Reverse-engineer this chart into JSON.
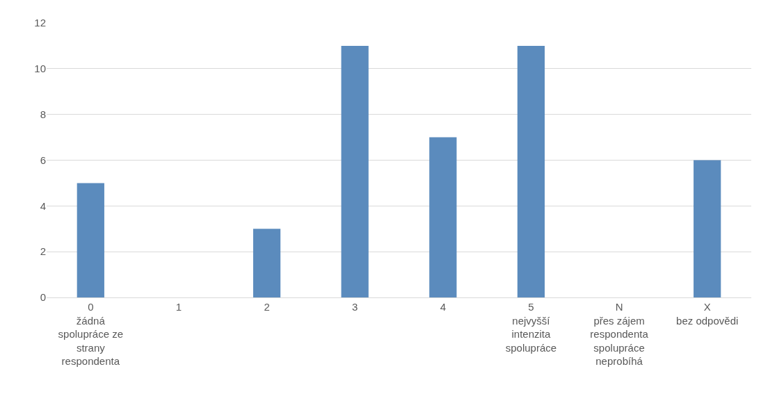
{
  "chart_data": {
    "type": "bar",
    "categories": [
      "0\nžádná\nspolupráce ze\nstrany\nrespondenta",
      "1",
      "2",
      "3",
      "4",
      "5\nnejvyšší\nintenzita\nspolupráce",
      "N\npřes zájem\nrespondenta\nspolupráce\nneprobíhá",
      "X\nbez odpovědi"
    ],
    "values": [
      5,
      0,
      3,
      11,
      7,
      11,
      0,
      6
    ],
    "color": "#5b8bbd",
    "ylim": [
      0,
      12
    ],
    "yticks": [
      0,
      2,
      4,
      6,
      8,
      10,
      12
    ],
    "grid": "y"
  }
}
